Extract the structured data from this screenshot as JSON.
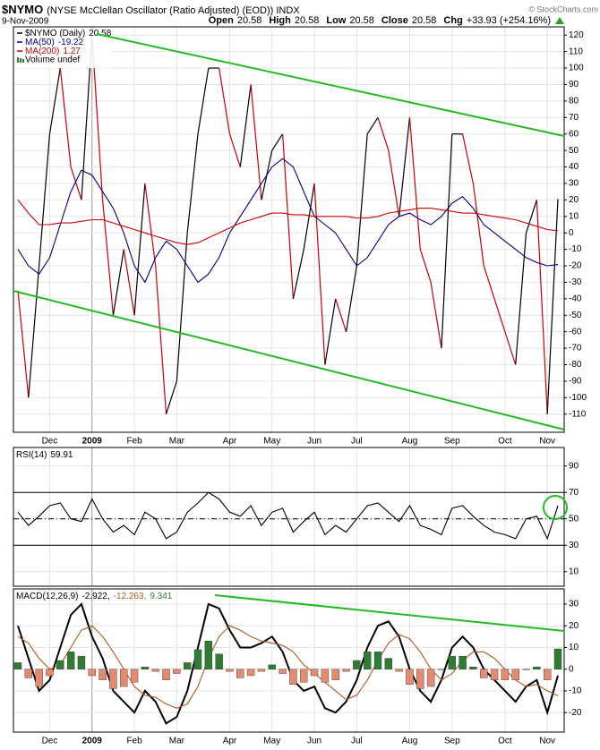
{
  "header": {
    "symbol": "$NYMO",
    "title": "(NYSE McClellan Oscillator (Ratio Adjusted) (EOD)) INDX",
    "source": "© StockCharts.com",
    "date": "9-Nov-2009",
    "quote": [
      {
        "label": "Open",
        "value": "20.58"
      },
      {
        "label": "High",
        "value": "20.58"
      },
      {
        "label": "Low",
        "value": "20.58"
      },
      {
        "label": "Close",
        "value": "20.58"
      },
      {
        "label": "Chg",
        "value": "+33.93 (+254.16%)"
      }
    ]
  },
  "chart_data": [
    {
      "type": "line",
      "categories": [
        null,
        null,
        null,
        "Dec",
        null,
        null,
        null,
        "2009",
        null,
        null,
        null,
        "Feb",
        null,
        null,
        null,
        "Mar",
        null,
        null,
        null,
        null,
        "Apr",
        null,
        null,
        null,
        "May",
        null,
        null,
        null,
        "Jun",
        null,
        null,
        null,
        "Jul",
        null,
        null,
        null,
        null,
        "Aug",
        null,
        null,
        null,
        "Sep",
        null,
        null,
        null,
        null,
        "Oct",
        null,
        null,
        null,
        "Nov",
        null
      ],
      "series": [
        {
          "name": "$NYMO (Daily)",
          "color": "#000000",
          "up_color": "#000000",
          "down_color": "#cc0000",
          "values": [
            -35,
            -100,
            -20,
            60,
            100,
            40,
            20,
            120,
            20,
            -50,
            -10,
            -50,
            30,
            -20,
            -110,
            -90,
            0,
            60,
            100,
            100,
            60,
            40,
            90,
            20,
            50,
            60,
            -40,
            -10,
            30,
            -80,
            -40,
            -60,
            -20,
            60,
            70,
            50,
            10,
            70,
            -10,
            -30,
            -70,
            60,
            60,
            30,
            -20,
            -40,
            -60,
            -80,
            0,
            20,
            -110,
            20.58
          ]
        },
        {
          "name": "MA(50)",
          "color": "#00008b",
          "values": [
            -10,
            -20,
            -25,
            -15,
            5,
            25,
            38,
            35,
            25,
            15,
            0,
            -20,
            -30,
            -15,
            -5,
            -10,
            -20,
            -30,
            -25,
            -15,
            0,
            10,
            20,
            30,
            40,
            45,
            40,
            25,
            10,
            5,
            0,
            -10,
            -20,
            -15,
            -5,
            5,
            10,
            12,
            8,
            5,
            10,
            18,
            22,
            15,
            5,
            0,
            -5,
            -10,
            -15,
            -18,
            -20,
            -19.22
          ]
        },
        {
          "name": "MA(200)",
          "color": "#cc0000",
          "values": [
            20,
            12,
            5,
            5,
            6,
            6,
            7,
            8,
            8,
            6,
            4,
            2,
            0,
            -2,
            -4,
            -6,
            -7,
            -6,
            -3,
            0,
            3,
            6,
            8,
            10,
            12,
            12,
            11,
            11,
            10,
            10,
            10,
            10,
            9,
            9,
            10,
            12,
            13,
            14,
            15,
            15,
            14,
            13,
            12,
            12,
            11,
            10,
            9,
            8,
            6,
            4,
            2,
            1.27
          ]
        }
      ],
      "legend_extra": "Volume undef",
      "ylim": [
        -121,
        125
      ],
      "yticks": [
        120,
        110,
        100,
        90,
        80,
        70,
        60,
        50,
        40,
        30,
        20,
        10,
        0,
        -10,
        -20,
        -30,
        -40,
        -50,
        -60,
        -70,
        -80,
        -90,
        -100,
        -110
      ],
      "grid": true
    },
    {
      "type": "line",
      "series": [
        {
          "name": "RSI(14)",
          "color": "#000000",
          "values": [
            55,
            45,
            52,
            60,
            62,
            50,
            48,
            65,
            50,
            40,
            45,
            38,
            55,
            50,
            35,
            40,
            55,
            62,
            70,
            65,
            55,
            52,
            60,
            45,
            55,
            58,
            40,
            48,
            55,
            38,
            45,
            40,
            50,
            60,
            62,
            55,
            48,
            60,
            45,
            42,
            38,
            58,
            60,
            52,
            45,
            40,
            38,
            35,
            50,
            52,
            35,
            59.91
          ]
        }
      ],
      "levels": [
        70,
        30
      ],
      "midline": 50,
      "ylim": [
        -1,
        104
      ],
      "yticks": [
        90,
        70,
        50,
        30,
        10
      ],
      "grid": true
    },
    {
      "type": "line",
      "name": "MACD(12,26,9)",
      "separator": ",",
      "categories": [
        null,
        null,
        null,
        "Dec",
        null,
        null,
        null,
        "2009",
        null,
        null,
        null,
        "Feb",
        null,
        null,
        null,
        "Mar",
        null,
        null,
        null,
        null,
        "Apr",
        null,
        null,
        null,
        "May",
        null,
        null,
        null,
        "Jun",
        null,
        null,
        null,
        "Jul",
        null,
        null,
        null,
        null,
        "Aug",
        null,
        null,
        null,
        "Sep",
        null,
        null,
        null,
        null,
        "Oct",
        null,
        null,
        null,
        "Nov",
        null
      ],
      "series": [
        {
          "color": "#000000",
          "values": [
            20,
            5,
            -10,
            -5,
            10,
            25,
            30,
            15,
            5,
            -10,
            -15,
            -20,
            -10,
            -15,
            -25,
            -22,
            -10,
            10,
            30,
            28,
            18,
            10,
            10,
            12,
            15,
            8,
            -5,
            -10,
            -8,
            -18,
            -20,
            -15,
            -5,
            10,
            20,
            22,
            15,
            0,
            -10,
            -15,
            -5,
            10,
            15,
            10,
            0,
            -5,
            -10,
            -15,
            -8,
            -5,
            -20,
            -2.922
          ]
        },
        {
          "color": "#b5561d",
          "values": [
            15,
            12,
            5,
            0,
            2,
            10,
            18,
            20,
            15,
            8,
            0,
            -8,
            -12,
            -13,
            -16,
            -18,
            -16,
            -8,
            5,
            15,
            20,
            18,
            15,
            13,
            12,
            11,
            8,
            2,
            -2,
            -6,
            -10,
            -14,
            -12,
            -5,
            4,
            12,
            16,
            14,
            8,
            0,
            -5,
            -2,
            4,
            8,
            8,
            5,
            0,
            -5,
            -8,
            -7,
            -10,
            -12.263
          ]
        },
        {
          "kind": "histogram",
          "color": "#2e7d32",
          "negative_color": "#e58a6e",
          "values": [
            3,
            -4,
            -8,
            -3,
            4,
            8,
            6,
            -3,
            -5,
            -9,
            -8,
            -6,
            1,
            -1,
            -5,
            -2,
            3,
            9,
            13,
            7,
            -1,
            -4,
            -3,
            -1,
            2,
            -2,
            -7,
            -6,
            -3,
            -6,
            -5,
            -1,
            4,
            8,
            8,
            5,
            -1,
            -7,
            -9,
            -8,
            0,
            6,
            6,
            1,
            -4,
            -5,
            -5,
            -5,
            0,
            1,
            -5,
            9.341
          ]
        }
      ],
      "ylim": [
        -29,
        37
      ],
      "yticks": [
        30,
        20,
        10,
        0,
        -10,
        -20
      ],
      "grid": true
    }
  ]
}
